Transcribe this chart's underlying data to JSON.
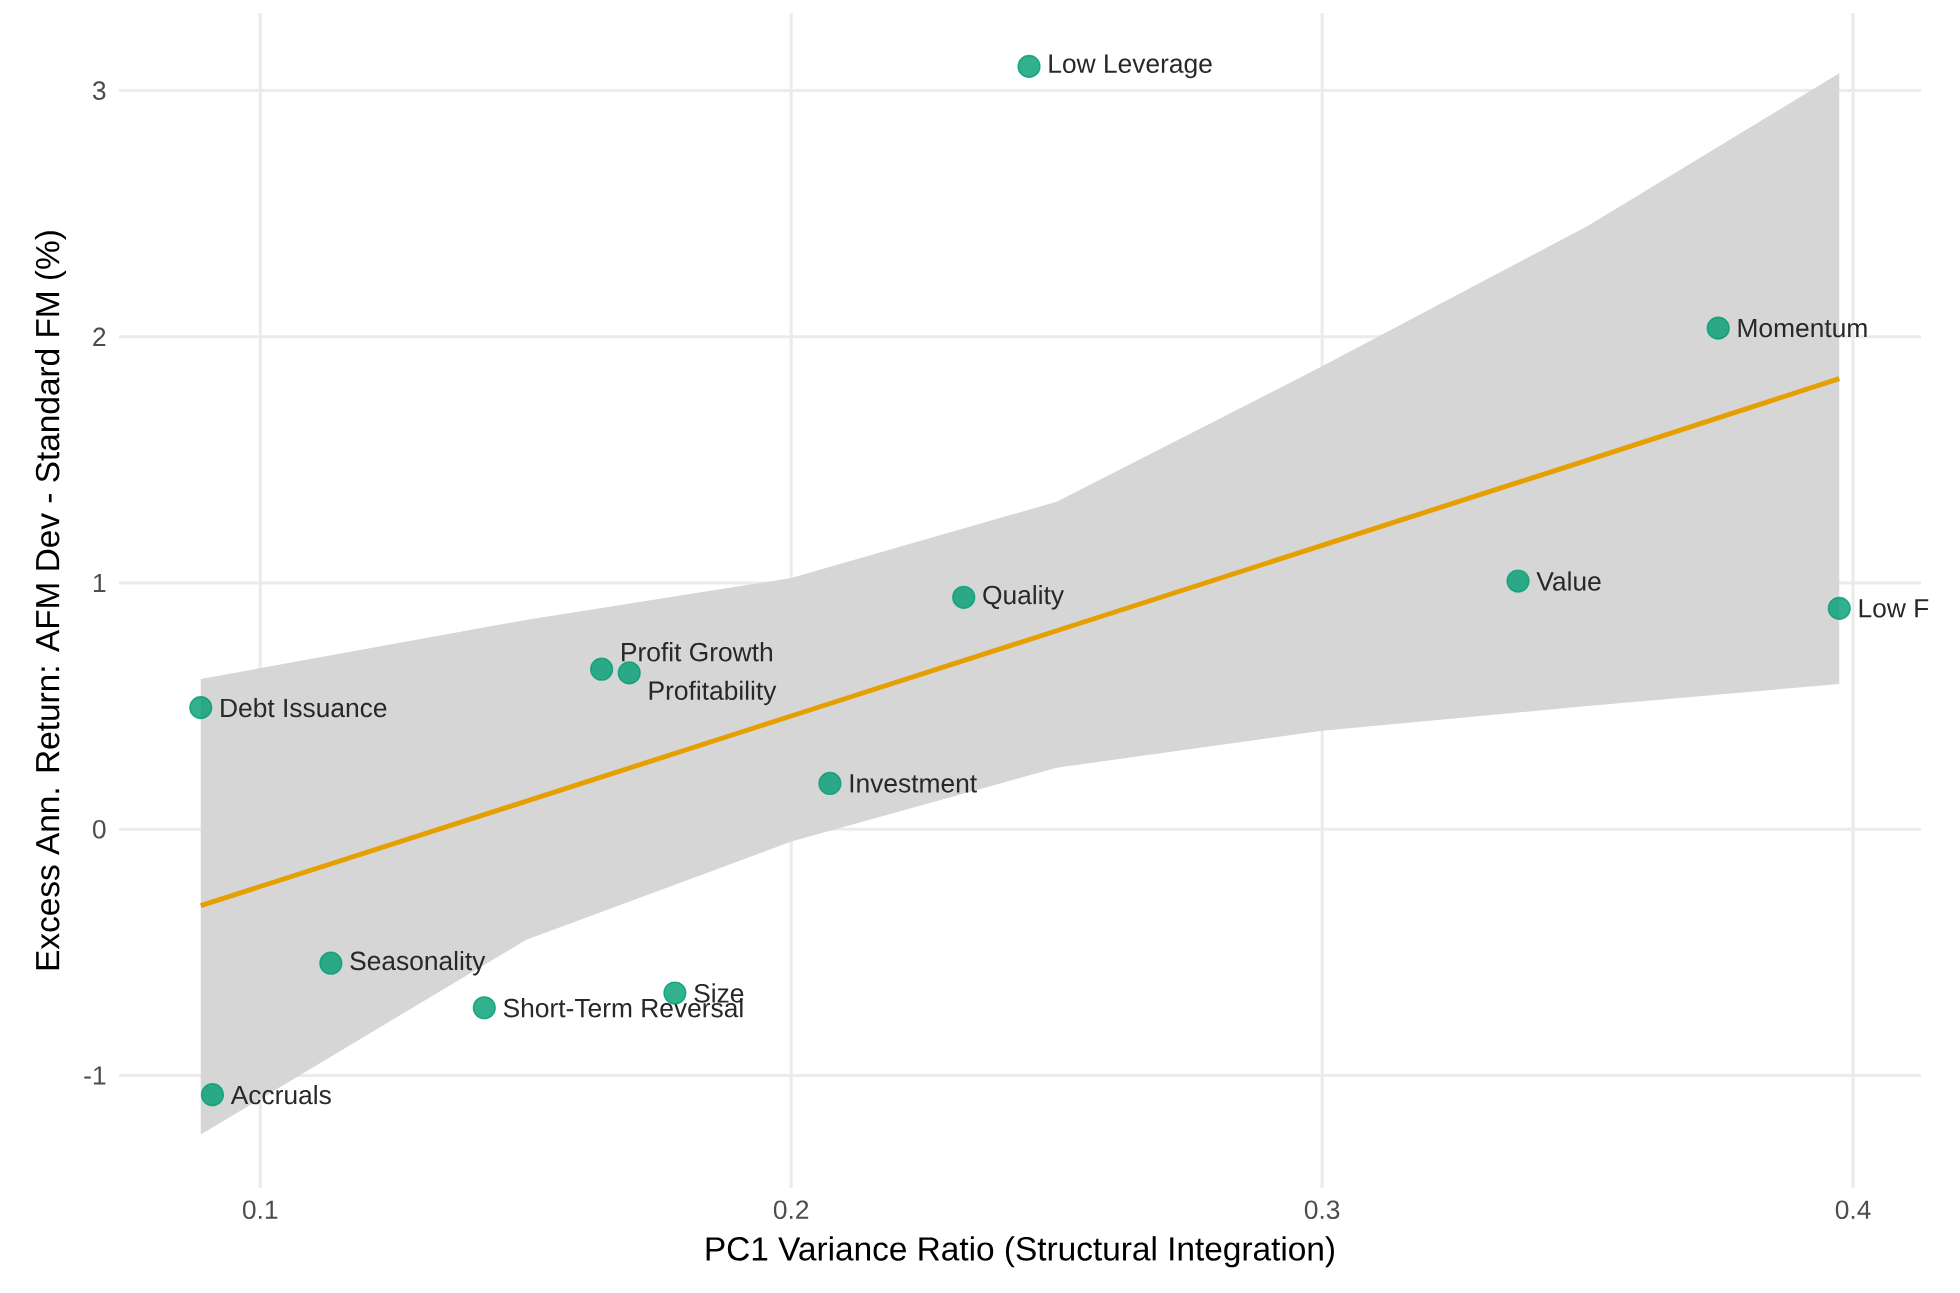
{
  "chart_data": {
    "type": "scatter",
    "xlabel": "PC1 Variance Ratio (Structural Integration)",
    "ylabel": "Excess Ann. Return: AFM Dev - Standard FM (%)",
    "xlim": [
      0.0734,
      0.4128
    ],
    "ylim": [
      -1.457,
      3.315
    ],
    "xticks": [
      0.1,
      0.2,
      0.3,
      0.4
    ],
    "yticks": [
      -1,
      0,
      1,
      2,
      3
    ],
    "grid": true,
    "series": [
      {
        "marker": "circle",
        "color": "#009e73",
        "x": [
          0.2448,
          0.3746,
          0.3369,
          0.3974,
          0.2325,
          0.1643,
          0.1695,
          0.0888,
          0.2073,
          0.1133,
          0.1781,
          0.1422,
          0.091
        ],
        "values": [
          3.098,
          2.035,
          1.008,
          0.897,
          0.942,
          0.65,
          0.635,
          0.494,
          0.186,
          -0.544,
          -0.665,
          -0.725,
          -1.078
        ]
      },
      {
        "type": "line",
        "marker": "none",
        "color": "#e69f00",
        "x": [
          0.0888,
          0.15,
          0.2,
          0.25,
          0.3,
          0.35,
          0.3974
        ],
        "values": [
          -0.31,
          0.113,
          0.46,
          0.806,
          1.153,
          1.499,
          1.83
        ],
        "lower": [
          -1.24,
          -0.45,
          -0.05,
          0.25,
          0.4,
          0.5,
          0.59
        ],
        "upper": [
          0.61,
          0.85,
          1.02,
          1.33,
          1.88,
          2.45,
          3.07
        ]
      }
    ],
    "annotations": [
      {
        "text": "Low Leverage",
        "x": 0.2448,
        "y": 3.098
      },
      {
        "text": "Momentum",
        "x": 0.3746,
        "y": 2.035
      },
      {
        "text": "Value",
        "x": 0.3369,
        "y": 1.008
      },
      {
        "text": "Low F",
        "x": 0.3974,
        "y": 0.897
      },
      {
        "text": "Quality",
        "x": 0.2325,
        "y": 0.942
      },
      {
        "text": "Profit Growth",
        "x": 0.1643,
        "y": 0.65
      },
      {
        "text": "Profitability",
        "x": 0.1695,
        "y": 0.635
      },
      {
        "text": "Debt Issuance",
        "x": 0.0888,
        "y": 0.494
      },
      {
        "text": "Investment",
        "x": 0.2073,
        "y": 0.186
      },
      {
        "text": "Seasonality",
        "x": 0.1133,
        "y": -0.544
      },
      {
        "text": "Size",
        "x": 0.1781,
        "y": -0.665
      },
      {
        "text": "Short-Term Reversal",
        "x": 0.1422,
        "y": -0.725
      },
      {
        "text": "Accruals",
        "x": 0.091,
        "y": -1.078
      }
    ]
  }
}
